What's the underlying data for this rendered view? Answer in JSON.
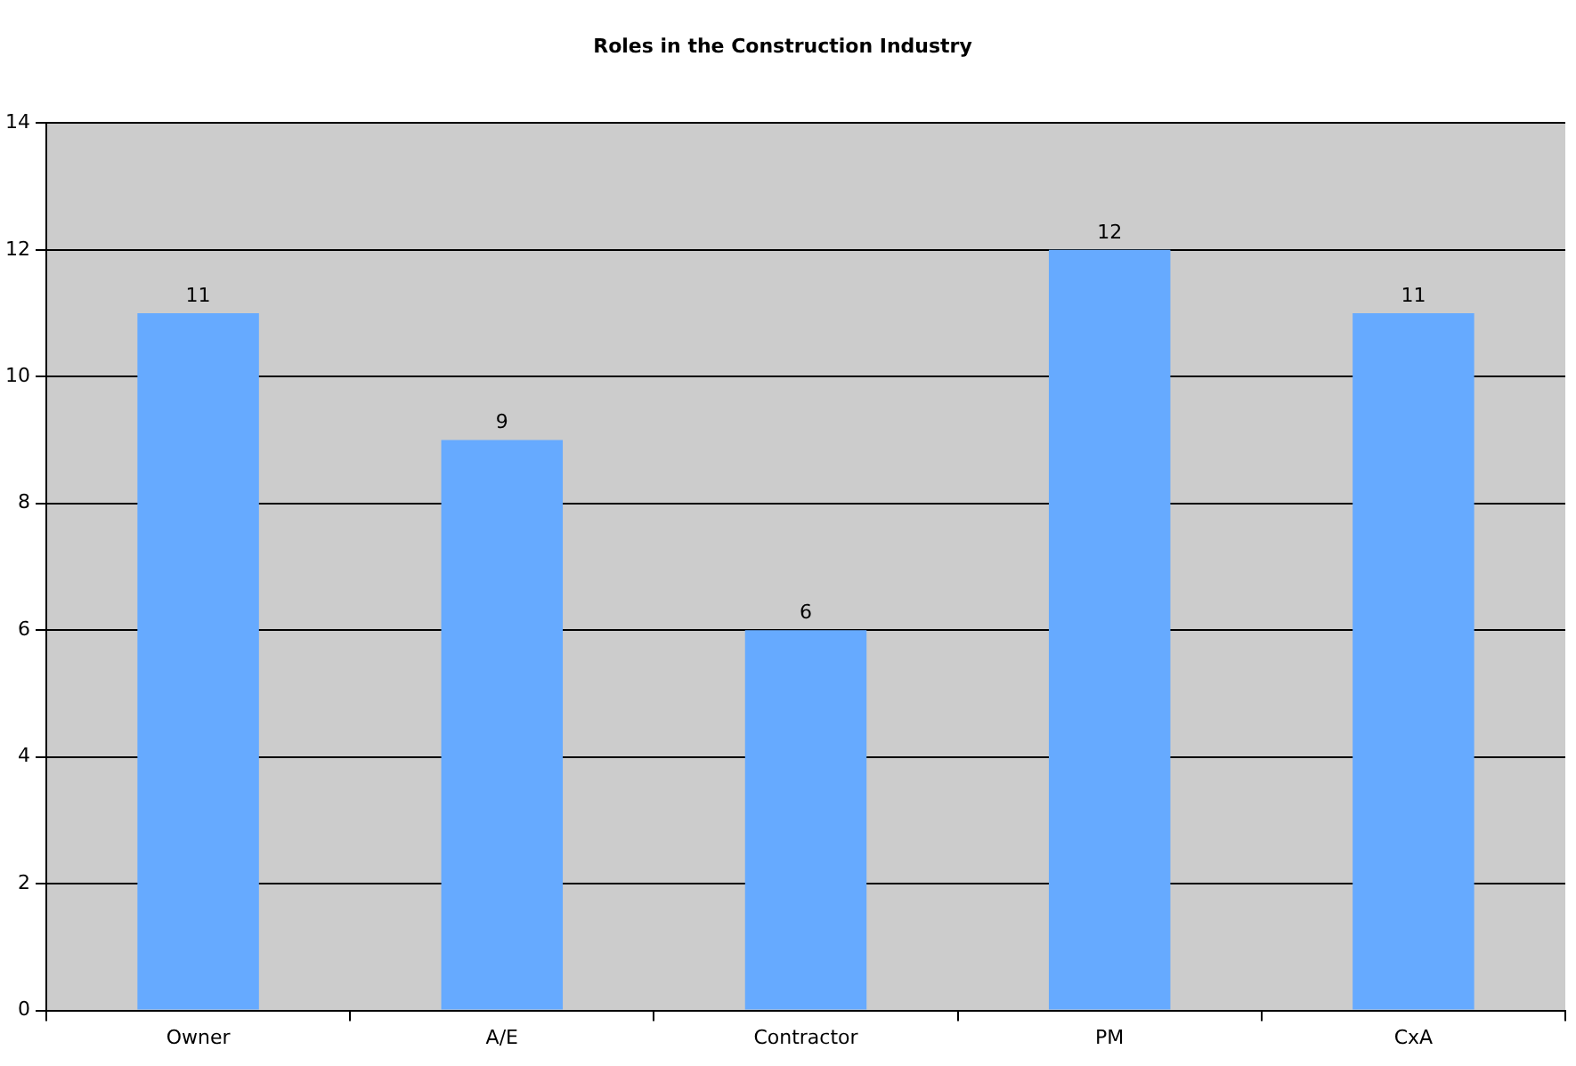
{
  "chart_data": {
    "type": "bar",
    "title": "Roles in the Construction Industry",
    "categories": [
      "Owner",
      "A/E",
      "Contractor",
      "PM",
      "CxA"
    ],
    "values": [
      11,
      9,
      6,
      12,
      11
    ],
    "color": "#66aaff",
    "ylim": [
      0,
      14
    ],
    "yticks": [
      0,
      2,
      4,
      6,
      8,
      10,
      12,
      14
    ],
    "grid": "y",
    "data_labels": true,
    "legend": false
  }
}
